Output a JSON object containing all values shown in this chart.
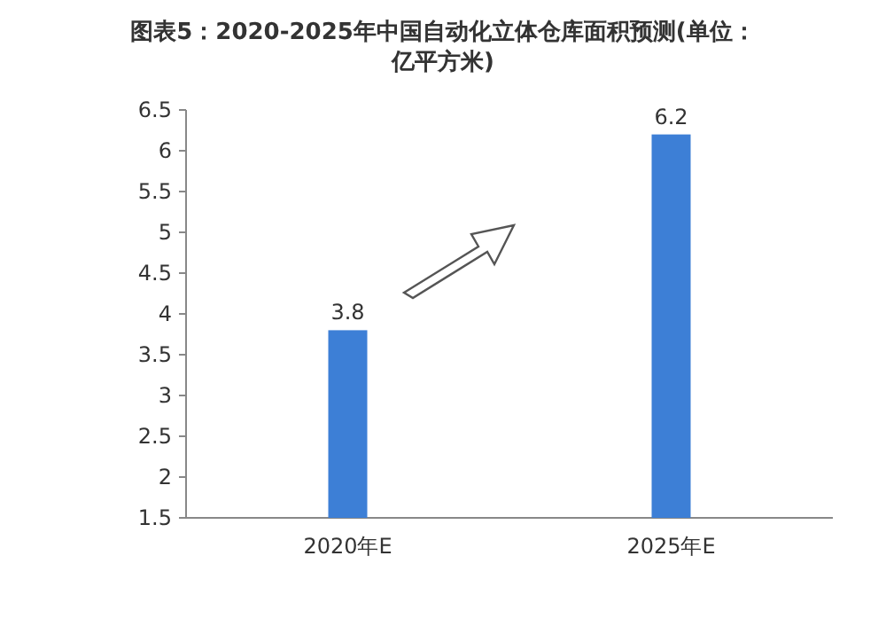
{
  "chart_data": {
    "type": "bar",
    "title": "图表5：2020-2025年中国自动化立体仓库面积预测(单位：亿平方米)",
    "categories": [
      "2020年E",
      "2025年E"
    ],
    "values": [
      3.8,
      6.2
    ],
    "color": "#3d7fd6",
    "ylim": [
      1.5,
      6.5
    ],
    "yticks": [
      1.5,
      2,
      2.5,
      3,
      3.5,
      4,
      4.5,
      5,
      5.5,
      6,
      6.5
    ],
    "data_labels": true
  }
}
